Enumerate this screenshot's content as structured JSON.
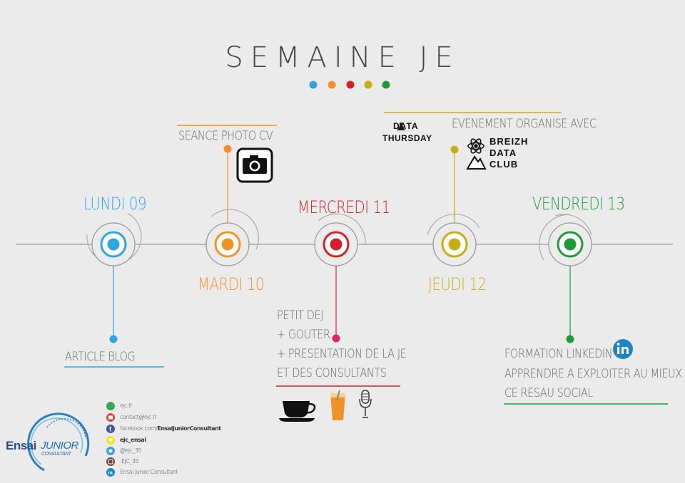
{
  "title": "SEMAINE JE",
  "colors": {
    "blue": "#2da6e0",
    "orange": "#f29125",
    "red": "#d6212a",
    "olive": "#c3af12",
    "green": "#1f9a3a",
    "pink": "#e0236b"
  },
  "days": [
    {
      "label": "LUNDI 09"
    },
    {
      "label": "MARDI 10"
    },
    {
      "label": "MERCREDI 11"
    },
    {
      "label": "JEUDI 12"
    },
    {
      "label": "VENDREDI 13"
    }
  ],
  "events": {
    "monday": "ARTICLE BLOG",
    "tuesday": "SEANCE PHOTO CV",
    "wednesday": [
      "PETIT DEJ",
      "+ GOUTER",
      "+ PRESENTATION DE LA JE",
      "ET DES CONSULTANTS"
    ],
    "thursday": "EVENEMENT ORGANISE AVEC",
    "friday": [
      "FORMATION LINKEDIN :",
      "APPRENDRE A EXPLOITER AU MIEUX",
      "CE RESAU SOCIAL"
    ]
  },
  "partners": {
    "data_thursday": [
      "DATA",
      "THURSDAY"
    ],
    "breizh": [
      "BREIZH",
      "DATA",
      "CLUB"
    ]
  },
  "contacts": [
    {
      "icon": "web-icon",
      "text": "ejc.fr"
    },
    {
      "icon": "mail-icon",
      "text": "contact@ejc.fr"
    },
    {
      "icon": "facebook-icon",
      "prefix": "facebook.com/",
      "text": "EnsaiJuniorConsultant"
    },
    {
      "icon": "snapchat-icon",
      "text": "ejc_ensai"
    },
    {
      "icon": "twitter-icon",
      "text": "@ejc_35"
    },
    {
      "icon": "instagram-icon",
      "text": "EJC_35"
    },
    {
      "icon": "linkedin-icon",
      "text": "Ensai Junior Consultant"
    }
  ],
  "logo": {
    "ensai": "Ensai",
    "junior": "JUNIOR",
    "consultant": "CONSULTANT"
  }
}
